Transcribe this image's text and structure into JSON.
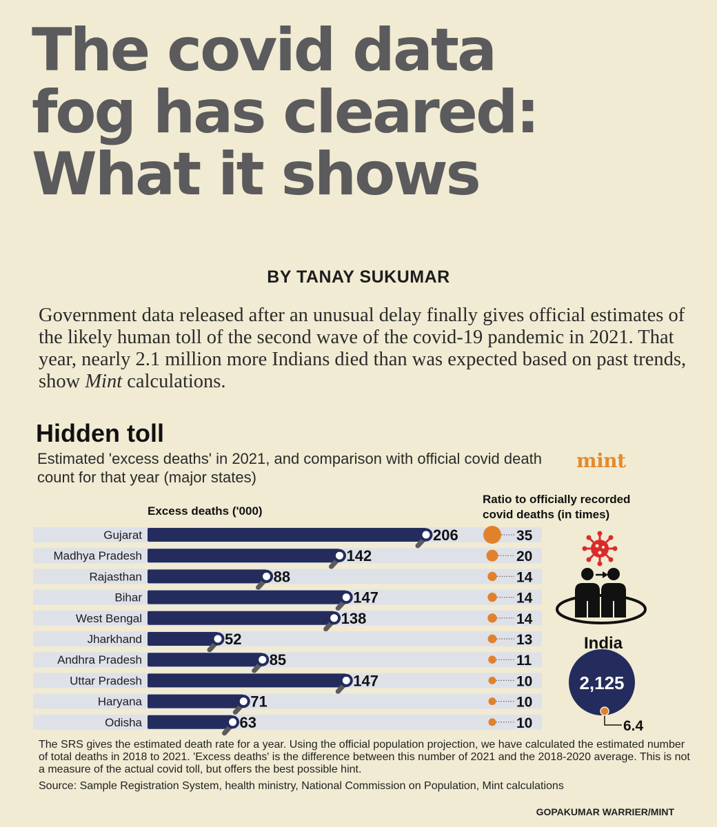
{
  "headline": {
    "line1": "The covid data",
    "line2": "fog has cleared:",
    "line3": "What it shows"
  },
  "byline": "BY TANAY SUKUMAR",
  "intro": {
    "part1": "Government data released after an unusual delay finally gives official estimates of the likely human toll of the second wave of the covid-19 pandemic in 2021. That year, nearly 2.1 million more Indians died than was expected based on past trends, show ",
    "emphasis": "Mint",
    "part2": " calculations."
  },
  "brand": "mint",
  "chart_data": {
    "type": "bar",
    "title": "Hidden toll",
    "subtitle": "Estimated 'excess deaths' in 2021, and comparison with official covid death count for that year (major states)",
    "xlabel": "Excess deaths ('000)",
    "ratio_label": "Ratio to officially recorded covid deaths (in times)",
    "xlim": [
      0,
      206
    ],
    "categories": [
      "Gujarat",
      "Madhya Pradesh",
      "Rajasthan",
      "Bihar",
      "West Bengal",
      "Jharkhand",
      "Andhra Pradesh",
      "Uttar Pradesh",
      "Haryana",
      "Odisha"
    ],
    "series": [
      {
        "values": [
          206,
          142,
          88,
          147,
          138,
          52,
          85,
          147,
          71,
          63
        ]
      },
      {
        "values": [
          35,
          20,
          14,
          14,
          14,
          13,
          11,
          10,
          10,
          10
        ]
      }
    ],
    "national": {
      "name": "India",
      "excess_deaths": "2,125",
      "ratio": "6.4"
    }
  },
  "notes": {
    "method": "The SRS gives the estimated death rate for a year. Using the official population projection, we have calculated the estimated number of total deaths in 2018 to 2021. 'Excess deaths' is the difference between this number of 2021 and the 2018-2020 average. This is not a measure of the actual covid toll, but offers the best possible hint.",
    "source": "Source: Sample Registration System, health ministry, National Commission on Population, Mint calculations"
  },
  "credit": "GOPAKUMAR WARRIER/MINT",
  "colors": {
    "background": "#f1ebd3",
    "bar": "#232c5c",
    "row_band": "#dfe1e9",
    "ratio_dot": "#e0822b",
    "virus": "#d92b2b",
    "brand": "#e58a2c"
  },
  "icons": [
    "virus-icon",
    "person-to-person-transmission-icon"
  ]
}
